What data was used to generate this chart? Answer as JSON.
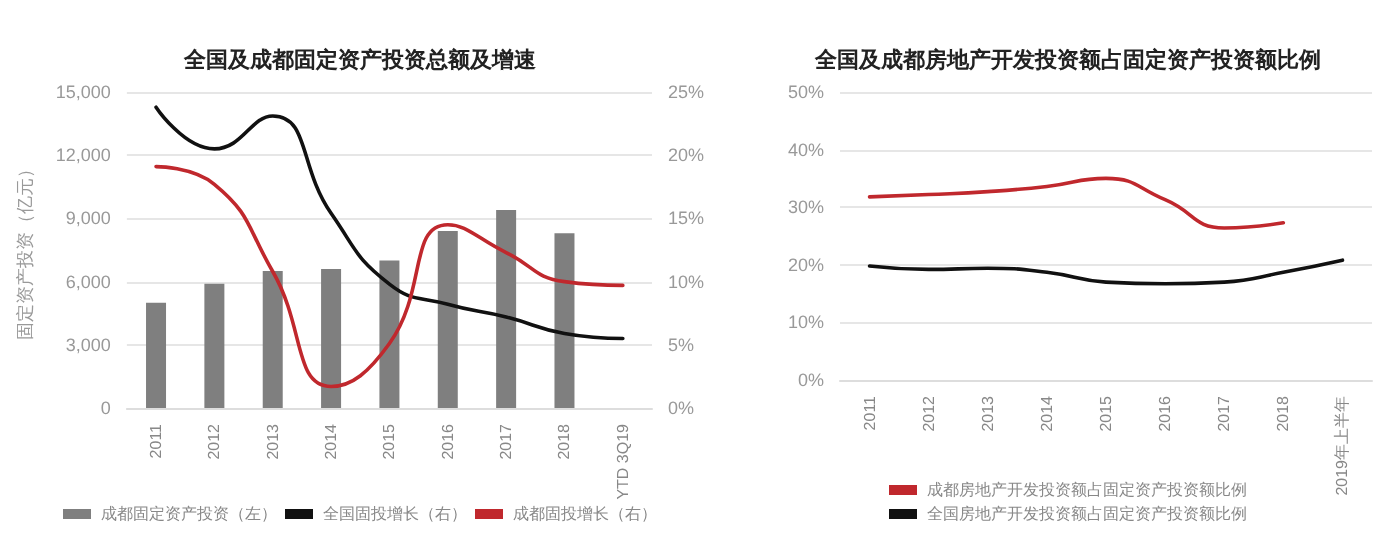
{
  "chart_data": [
    {
      "type": "bar",
      "title": "全国及成都固定资产投资总额及增速",
      "ylabel": "固定资产投资（亿元）",
      "categories": [
        "2011",
        "2012",
        "2013",
        "2014",
        "2015",
        "2016",
        "2017",
        "2018",
        "YTD 3Q19"
      ],
      "series": [
        {
          "name": "成都固定资产投资（左）",
          "color": "#7f7f7f",
          "values": [
            5000,
            5900,
            6500,
            6600,
            7000,
            8400,
            9400,
            8300,
            null
          ]
        },
        {
          "name": "全国固投增长（右）",
          "type": "line",
          "axis": "y2",
          "color": "#111111",
          "values": [
            23.8,
            20.5,
            23.1,
            15.4,
            9.8,
            8.2,
            7.2,
            5.9,
            5.5
          ]
        },
        {
          "name": "成都固投增长（右）",
          "type": "line",
          "axis": "y2",
          "color": "#c0282d",
          "values": [
            19.1,
            17.7,
            10.8,
            1.7,
            5.1,
            14.5,
            12.3,
            10.0,
            9.7
          ]
        }
      ],
      "ylim": [
        0,
        15000
      ],
      "yticks": [
        0,
        {
          "value": 3000,
          "label": "3,000"
        },
        {
          "value": 6000,
          "label": "6,000"
        },
        {
          "value": 9000,
          "label": "9,000"
        },
        {
          "value": 12000,
          "label": "12,000"
        },
        {
          "value": 15000,
          "label": "15,000"
        }
      ],
      "y2lim": [
        0,
        25
      ],
      "y2ticks": [
        {
          "value": 0,
          "label": "0%"
        },
        {
          "value": 5,
          "label": "5%"
        },
        {
          "value": 10,
          "label": "10%"
        },
        {
          "value": 15,
          "label": "15%"
        },
        {
          "value": 20,
          "label": "20%"
        },
        {
          "value": 25,
          "label": "25%"
        }
      ],
      "grid": "y",
      "legend": "bottom",
      "marker": "none",
      "line_style": "solid"
    },
    {
      "type": "line",
      "title": "全国及成都房地产开发投资额占固定资产投资额比例",
      "categories": [
        "2011",
        "2012",
        "2013",
        "2014",
        "2015",
        "2016",
        "2017",
        "2018",
        "2019年上半年"
      ],
      "series": [
        {
          "name": "成都房地产开发投资额占固定资产投资额比例",
          "color": "#c0282d",
          "values": [
            31.8,
            32.2,
            32.7,
            33.6,
            35.0,
            31.3,
            26.4,
            27.3,
            null
          ]
        },
        {
          "name": "全国房地产开发投资额占固定资产投资额比例",
          "color": "#111111",
          "values": [
            19.8,
            19.2,
            19.4,
            18.7,
            17.0,
            16.7,
            17.0,
            18.7,
            20.8
          ]
        }
      ],
      "ylim": [
        0,
        50
      ],
      "yticks": [
        {
          "value": 0,
          "label": "0%"
        },
        {
          "value": 10,
          "label": "10%"
        },
        {
          "value": 20,
          "label": "20%"
        },
        {
          "value": 30,
          "label": "30%"
        },
        {
          "value": 40,
          "label": "40%"
        },
        {
          "value": 50,
          "label": "50%"
        }
      ],
      "grid": "y",
      "legend": "bottom",
      "marker": "none",
      "line_style": "solid"
    }
  ]
}
